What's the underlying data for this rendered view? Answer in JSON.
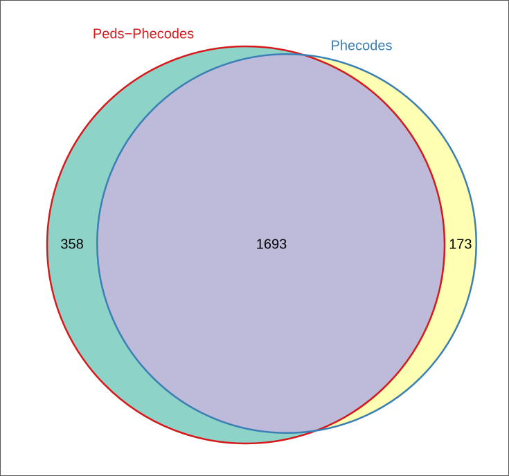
{
  "chart_data": {
    "type": "venn",
    "sets": [
      {
        "name": "Peds−Phecodes",
        "color": "#d7191c"
      },
      {
        "name": "Phecodes",
        "color": "#3a7fb5"
      }
    ],
    "values": [
      358,
      1693,
      173
    ],
    "fills": [
      "#8dd3c7",
      "#bebada",
      "#ffffb3"
    ]
  }
}
